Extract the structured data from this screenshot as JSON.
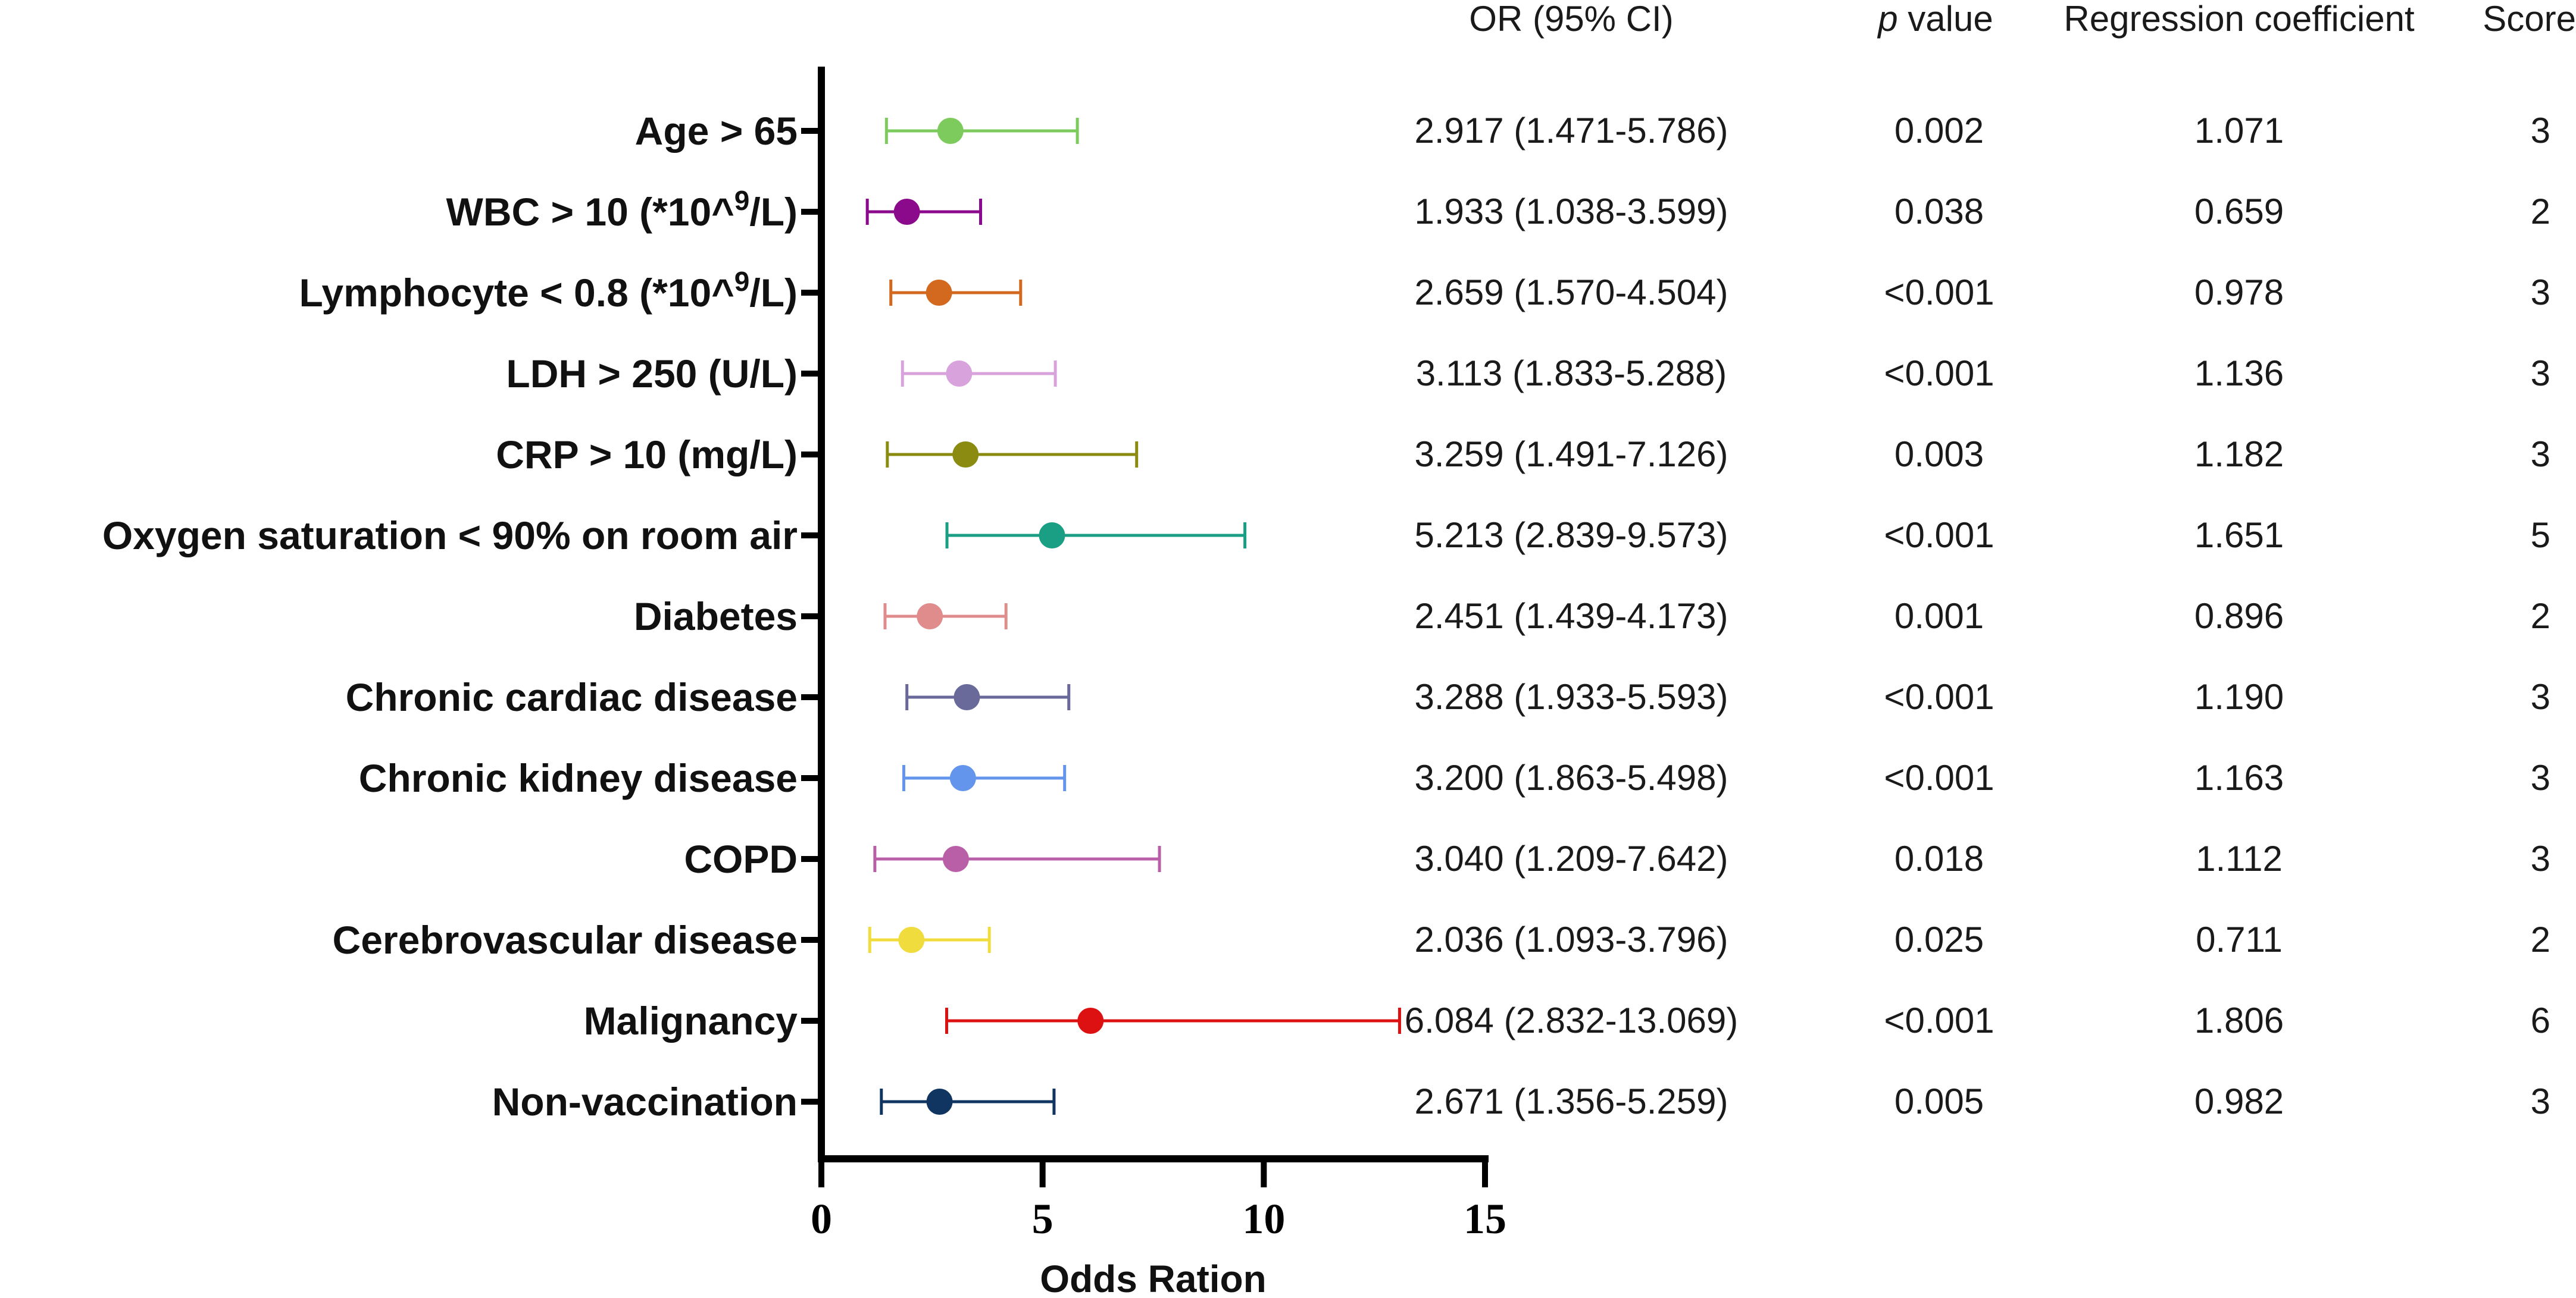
{
  "chart_data": {
    "type": "forest",
    "xlabel": "Odds Ration",
    "xlim": [
      0,
      15
    ],
    "xticks": [
      0,
      5,
      10,
      15
    ],
    "column_headers": {
      "or_ci": "OR (95% CI)",
      "p_italic": "p",
      "p_rest": " value",
      "coef": "Regression coefficient",
      "score": "Score"
    },
    "rows": [
      {
        "label": "Age > 65",
        "or": 2.917,
        "lo": 1.471,
        "hi": 5.786,
        "or_text": "2.917 (1.471-5.786)",
        "p": "0.002",
        "coef": "1.071",
        "score": "3",
        "color": "#7dcb5d"
      },
      {
        "label": "WBC > 10 (*10^",
        "sup": "9",
        "label_after": "/L)",
        "or": 1.933,
        "lo": 1.038,
        "hi": 3.599,
        "or_text": "1.933 (1.038-3.599)",
        "p": "0.038",
        "coef": "0.659",
        "score": "2",
        "color": "#8b0a8b"
      },
      {
        "label": "Lymphocyte < 0.8 (*10^",
        "sup": "9",
        "label_after": "/L)",
        "or": 2.659,
        "lo": 1.57,
        "hi": 4.504,
        "or_text": "2.659 (1.570-4.504)",
        "p": "<0.001",
        "coef": "0.978",
        "score": "3",
        "color": "#d2691e"
      },
      {
        "label": "LDH > 250 (U/L)",
        "or": 3.113,
        "lo": 1.833,
        "hi": 5.288,
        "or_text": "3.113 (1.833-5.288)",
        "p": "<0.001",
        "coef": "1.136",
        "score": "3",
        "color": "#d8a2dc"
      },
      {
        "label": "CRP > 10 (mg/L)",
        "or": 3.259,
        "lo": 1.491,
        "hi": 7.126,
        "or_text": "3.259 (1.491-7.126)",
        "p": "0.003",
        "coef": "1.182",
        "score": "3",
        "color": "#8b8b12"
      },
      {
        "label": "Oxygen saturation < 90% on room air",
        "or": 5.213,
        "lo": 2.839,
        "hi": 9.573,
        "or_text": "5.213 (2.839-9.573)",
        "p": "<0.001",
        "coef": "1.651",
        "score": "5",
        "color": "#1a9e84"
      },
      {
        "label": "Diabetes",
        "or": 2.451,
        "lo": 1.439,
        "hi": 4.173,
        "or_text": "2.451 (1.439-4.173)",
        "p": "0.001",
        "coef": "0.896",
        "score": "2",
        "color": "#e08c8c"
      },
      {
        "label": "Chronic cardiac disease",
        "or": 3.288,
        "lo": 1.933,
        "hi": 5.593,
        "or_text": "3.288 (1.933-5.593)",
        "p": "<0.001",
        "coef": "1.190",
        "score": "3",
        "color": "#6a6a9a"
      },
      {
        "label": "Chronic kidney disease",
        "or": 3.2,
        "lo": 1.863,
        "hi": 5.498,
        "or_text": "3.200 (1.863-5.498)",
        "p": "<0.001",
        "coef": "1.163",
        "score": "3",
        "color": "#6495ed"
      },
      {
        "label": "COPD",
        "or": 3.04,
        "lo": 1.209,
        "hi": 7.642,
        "or_text": "3.040 (1.209-7.642)",
        "p": "0.018",
        "coef": "1.112",
        "score": "3",
        "color": "#b95fa8"
      },
      {
        "label": "Cerebrovascular disease",
        "or": 2.036,
        "lo": 1.093,
        "hi": 3.796,
        "or_text": "2.036 (1.093-3.796)",
        "p": "0.025",
        "coef": "0.711",
        "score": "2",
        "color": "#f0dc3c"
      },
      {
        "label": "Malignancy",
        "or": 6.084,
        "lo": 2.832,
        "hi": 13.069,
        "or_text": "6.084 (2.832-13.069)",
        "p": "<0.001",
        "coef": "1.806",
        "score": "6",
        "color": "#dd1111"
      },
      {
        "label": "Non-vaccination",
        "or": 2.671,
        "lo": 1.356,
        "hi": 5.259,
        "or_text": "2.671 (1.356-5.259)",
        "p": "0.005",
        "coef": "0.982",
        "score": "3",
        "color": "#0f3560"
      }
    ]
  }
}
